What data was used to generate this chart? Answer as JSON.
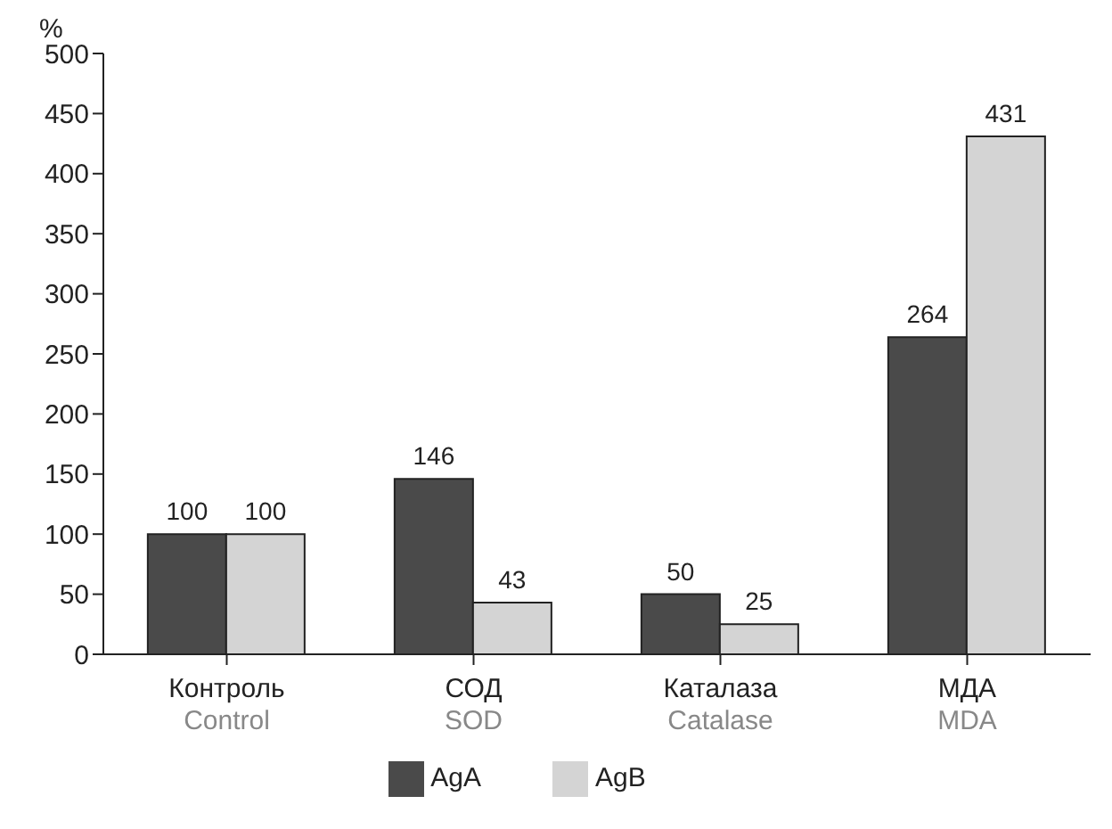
{
  "chart_data": {
    "type": "bar",
    "ylabel": "%",
    "categories": [
      "Контроль\nControl",
      "СОД\nSOD",
      "Каталаза\nCatalase",
      "МДА\nMDA"
    ],
    "series": [
      {
        "name": "AgA",
        "color": "#4a4a4a",
        "values": [
          100,
          146,
          50,
          264
        ]
      },
      {
        "name": "AgB",
        "color": "#d4d4d4",
        "values": [
          100,
          43,
          25,
          431
        ]
      }
    ],
    "ylim": [
      0,
      500
    ],
    "yticks": [
      0,
      50,
      100,
      150,
      200,
      250,
      300,
      350,
      400,
      450,
      500
    ],
    "grid": false,
    "legend": "bottom",
    "data_labels": true
  }
}
